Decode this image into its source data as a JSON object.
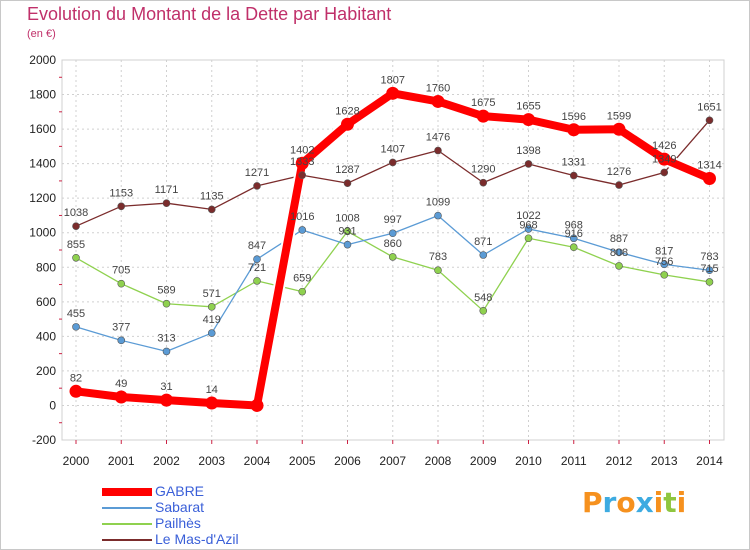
{
  "title": "Evolution du Montant de la Dette par Habitant",
  "unit": "(en €)",
  "brand": {
    "letters": [
      "P",
      "r",
      "o",
      "x",
      "i",
      "t",
      "i"
    ],
    "colors": [
      "#f6911e",
      "#3dabe1",
      "#f6911e",
      "#3dabe1",
      "#f6911e",
      "#8fc63f",
      "#f6911e"
    ]
  },
  "chart_data": {
    "type": "line",
    "title": "Evolution du Montant de la Dette par Habitant",
    "subtitle": "(en €)",
    "xlabel": "",
    "ylabel": "",
    "x": [
      "2000",
      "2001",
      "2002",
      "2003",
      "2004",
      "2005",
      "2006",
      "2007",
      "2008",
      "2009",
      "2010",
      "2011",
      "2012",
      "2013",
      "2014"
    ],
    "ylim": [
      -200,
      2000
    ],
    "yticks": [
      "-200",
      "0",
      "200",
      "400",
      "600",
      "800",
      "1000",
      "1200",
      "1400",
      "1600",
      "1800",
      "2000"
    ],
    "grid": true,
    "legend_position": "bottom-left",
    "series": [
      {
        "name": "GABRE",
        "color": "#ff0000",
        "values": [
          82,
          49,
          31,
          14,
          0,
          1402,
          1628,
          1807,
          1760,
          1675,
          1655,
          1596,
          1599,
          1426,
          1314
        ],
        "labels": [
          "82",
          "49",
          "31",
          "14",
          "",
          "1402",
          "1628",
          "1807",
          "1760",
          "1675",
          "1655",
          "1596",
          "1599",
          "1426",
          "1314"
        ]
      },
      {
        "name": "Sabarat",
        "color": "#5b9bd5",
        "values": [
          455,
          377,
          313,
          419,
          847,
          1016,
          931,
          997,
          1099,
          871,
          1022,
          968,
          887,
          817,
          783
        ],
        "labels": [
          "455",
          "377",
          "313",
          "419",
          "847",
          "1016",
          "931",
          "997",
          "1099",
          "871",
          "1022",
          "968",
          "887",
          "817",
          "783"
        ]
      },
      {
        "name": "Pailhès",
        "color": "#8fd14f",
        "values": [
          855,
          705,
          589,
          571,
          721,
          659,
          1008,
          860,
          783,
          548,
          968,
          916,
          808,
          756,
          715
        ],
        "labels": [
          "855",
          "705",
          "589",
          "571",
          "721",
          "659",
          "1008",
          "860",
          "783",
          "548",
          "968",
          "916",
          "808",
          "756",
          "715"
        ]
      },
      {
        "name": "Le Mas-d'Azil",
        "color": "#7b2c2c",
        "values": [
          1038,
          1153,
          1171,
          1135,
          1271,
          1333,
          1287,
          1407,
          1476,
          1290,
          1398,
          1331,
          1276,
          1349,
          1651
        ],
        "labels": [
          "1038",
          "1153",
          "1171",
          "1135",
          "1271",
          "1333",
          "1287",
          "1407",
          "1476",
          "1290",
          "1398",
          "1331",
          "1276",
          "1349",
          "1651"
        ]
      }
    ]
  }
}
